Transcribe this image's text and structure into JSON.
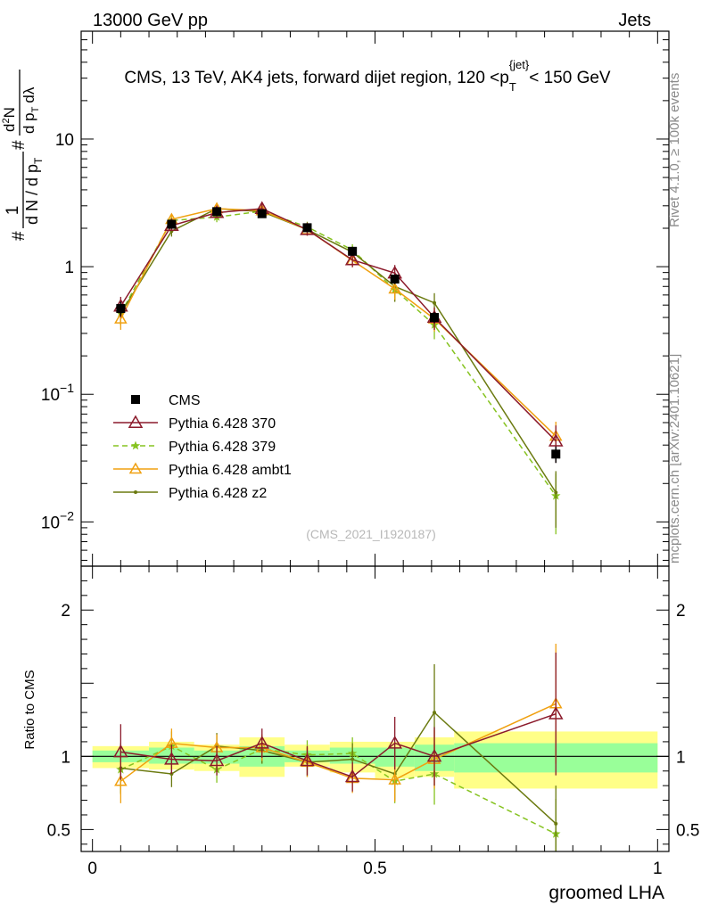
{
  "header": {
    "left": "13000 GeV pp",
    "right": "Jets"
  },
  "side_labels": {
    "rivet": "Rivet 4.1.0, ≥ 100k events",
    "mcplots": "mcplots.cern.ch [arXiv:2401.10621]"
  },
  "watermark": "(CMS_2021_I1920187)",
  "colors": {
    "cms": "#000000",
    "p370": "#8b1a2b",
    "p379": "#86c320",
    "ambt1": "#f0a010",
    "z2": "#6b7a10",
    "band_yellow": "#ffff88",
    "band_green": "#99ff99"
  },
  "chart_data": [
    {
      "type": "line",
      "id": "main",
      "title": "CMS, 13 TeV, AK4 jets, forward dijet region, 120 <p_T^{jet}< 150 GeV",
      "title_parts": {
        "main": "CMS, 13 TeV, AK4 jets, forward dijet region, 120 <p",
        "sub": "T",
        "sup": "{jet}",
        "tail": "< 150 GeV"
      },
      "ylabel": "1/(dN/dp_T) d²N/(dp_T dλ)",
      "ylabel_parts": {
        "hash": "#",
        "one": "1",
        "den": "d N / d p",
        "den_sub": "T",
        "num2": "d",
        "num2_sup": "2",
        "num2_tail": "N",
        "den2": "d p",
        "den2_sub": "T",
        "den2_tail": "dλ"
      },
      "yscale": "log",
      "ylim": [
        0.0045,
        70
      ],
      "xlim": [
        -0.02,
        1.02
      ],
      "ytick_labels": [
        {
          "value": 0.01,
          "base": "10",
          "exp": "−2"
        },
        {
          "value": 0.1,
          "base": "10",
          "exp": "−1"
        },
        {
          "value": 1,
          "base": "1",
          "exp": ""
        },
        {
          "value": 10,
          "base": "10",
          "exp": ""
        }
      ],
      "legend": [
        {
          "key": "cms",
          "label": "CMS"
        },
        {
          "key": "p370",
          "label": "Pythia 6.428 370"
        },
        {
          "key": "p379",
          "label": "Pythia 6.428 379"
        },
        {
          "key": "ambt1",
          "label": "Pythia 6.428 ambt1"
        },
        {
          "key": "z2",
          "label": "Pythia 6.428 z2"
        }
      ],
      "bin_edges": [
        0.0,
        0.1,
        0.18,
        0.26,
        0.34,
        0.42,
        0.5,
        0.57,
        0.64,
        1.0
      ],
      "x": [
        0.05,
        0.14,
        0.22,
        0.3,
        0.38,
        0.46,
        0.535,
        0.605,
        0.82
      ],
      "series": [
        {
          "key": "cms",
          "name": "CMS",
          "values": [
            0.47,
            2.15,
            2.7,
            2.6,
            2.02,
            1.32,
            0.8,
            0.4,
            0.034
          ],
          "err": [
            0.06,
            0.15,
            0.18,
            0.15,
            0.12,
            0.1,
            0.07,
            0.04,
            0.005
          ]
        },
        {
          "key": "p370",
          "name": "Pythia 6.428 370",
          "values": [
            0.49,
            2.1,
            2.65,
            2.85,
            1.95,
            1.13,
            0.89,
            0.4,
            0.043
          ],
          "err": [
            0.09,
            0.2,
            0.25,
            0.26,
            0.2,
            0.14,
            0.14,
            0.08,
            0.014
          ]
        },
        {
          "key": "p379",
          "name": "Pythia 6.428 379",
          "values": [
            0.43,
            2.3,
            2.45,
            2.72,
            2.05,
            1.35,
            0.66,
            0.35,
            0.016
          ],
          "err": [
            0.08,
            0.2,
            0.22,
            0.24,
            0.2,
            0.15,
            0.12,
            0.08,
            0.008
          ]
        },
        {
          "key": "ambt1",
          "name": "Pythia 6.428 ambt1",
          "values": [
            0.39,
            2.35,
            2.85,
            2.75,
            1.95,
            1.12,
            0.67,
            0.39,
            0.047
          ],
          "err": [
            0.07,
            0.2,
            0.24,
            0.25,
            0.2,
            0.13,
            0.12,
            0.08,
            0.014
          ]
        },
        {
          "key": "z2",
          "name": "Pythia 6.428 z2",
          "values": [
            0.43,
            1.9,
            2.85,
            2.7,
            1.95,
            1.3,
            0.7,
            0.52,
            0.017
          ],
          "err": [
            0.08,
            0.18,
            0.24,
            0.24,
            0.19,
            0.14,
            0.17,
            0.1,
            0.008
          ]
        }
      ]
    },
    {
      "type": "line",
      "id": "ratio",
      "ylabel": "Ratio to CMS",
      "xlabel": "groomed LHA",
      "ylim": [
        0.35,
        2.3
      ],
      "xlim": [
        -0.02,
        1.02
      ],
      "x_ticks": [
        {
          "value": 0,
          "label": "0"
        },
        {
          "value": 0.5,
          "label": "0.5"
        },
        {
          "value": 1,
          "label": "1"
        }
      ],
      "y_ticks": [
        {
          "value": 0.5,
          "label": "0.5"
        },
        {
          "value": 1,
          "label": "1"
        },
        {
          "value": 2,
          "label": "2"
        }
      ],
      "bands": {
        "yellow_lo": [
          0.92,
          0.91,
          0.9,
          0.86,
          0.93,
          0.89,
          0.85,
          0.86,
          0.78
        ],
        "yellow_hi": [
          1.07,
          1.1,
          1.08,
          1.13,
          1.08,
          1.1,
          1.1,
          1.13,
          1.17
        ],
        "green_lo": [
          0.96,
          0.95,
          0.95,
          0.93,
          0.96,
          0.95,
          0.93,
          0.9,
          0.89
        ],
        "green_hi": [
          1.04,
          1.06,
          1.04,
          1.07,
          1.04,
          1.06,
          1.06,
          1.08,
          1.09
        ]
      },
      "series": [
        {
          "key": "p370",
          "name": "Pythia 6.428 370",
          "values": [
            1.03,
            0.98,
            0.97,
            1.09,
            0.97,
            0.86,
            1.09,
            1.0,
            1.29
          ],
          "err": [
            0.19,
            0.1,
            0.1,
            0.1,
            0.1,
            0.1,
            0.18,
            0.2,
            0.42
          ]
        },
        {
          "key": "p379",
          "name": "Pythia 6.428 379",
          "values": [
            0.91,
            1.07,
            0.91,
            1.05,
            1.01,
            1.02,
            0.83,
            0.88,
            0.47
          ],
          "err": [
            0.17,
            0.1,
            0.09,
            0.1,
            0.1,
            0.11,
            0.15,
            0.21,
            0.24
          ]
        },
        {
          "key": "ambt1",
          "name": "Pythia 6.428 ambt1",
          "values": [
            0.83,
            1.09,
            1.06,
            1.06,
            0.96,
            0.85,
            0.84,
            0.98,
            1.36
          ],
          "err": [
            0.15,
            0.1,
            0.09,
            0.09,
            0.1,
            0.1,
            0.15,
            0.2,
            0.41
          ]
        },
        {
          "key": "z2",
          "name": "Pythia 6.428 z2",
          "values": [
            0.92,
            0.88,
            1.07,
            1.04,
            0.96,
            0.98,
            0.88,
            1.3,
            0.54
          ],
          "err": [
            0.17,
            0.09,
            0.09,
            0.09,
            0.1,
            0.11,
            0.18,
            0.33,
            0.26
          ]
        }
      ]
    }
  ]
}
